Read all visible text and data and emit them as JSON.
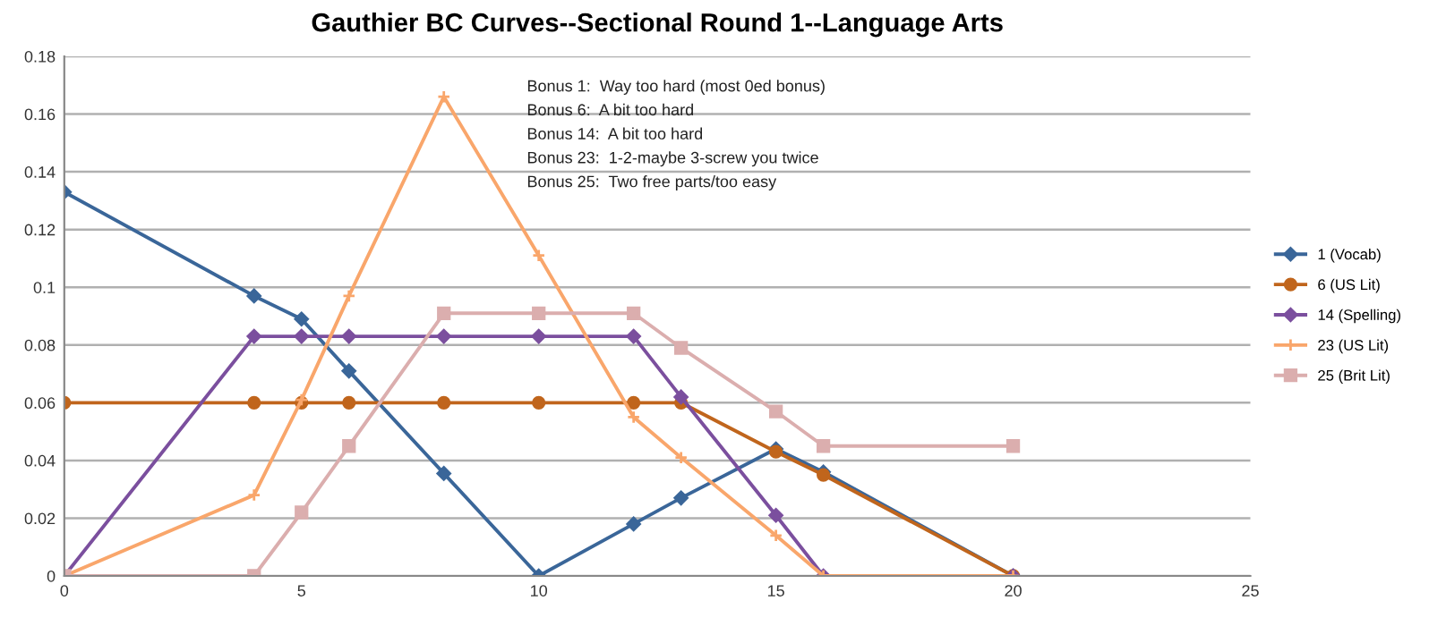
{
  "chart_data": {
    "type": "line",
    "title": "Gauthier BC Curves--Sectional Round 1--Language Arts",
    "x": [
      0,
      4,
      5,
      6,
      8,
      10,
      12,
      13,
      15,
      16,
      20
    ],
    "series": [
      {
        "name": "1 (Vocab)",
        "color": "#3a6699",
        "marker": "diamond",
        "values": [
          0.133,
          0.097,
          0.089,
          0.071,
          0.0355,
          0,
          0.018,
          0.027,
          0.044,
          0.036,
          0
        ]
      },
      {
        "name": "6 (US Lit)",
        "color": "#c0651c",
        "marker": "circle",
        "values": [
          0.06,
          0.06,
          0.06,
          0.06,
          0.06,
          0.06,
          0.06,
          0.06,
          0.043,
          0.035,
          0
        ]
      },
      {
        "name": "14 (Spelling)",
        "color": "#7b4f9e",
        "marker": "diamond",
        "values": [
          0,
          0.083,
          0.083,
          0.083,
          0.083,
          0.083,
          0.083,
          0.062,
          0.021,
          0,
          0
        ]
      },
      {
        "name": "23 (US Lit)",
        "color": "#f9a66b",
        "marker": "cross",
        "values": [
          0,
          0.028,
          0.061,
          0.097,
          0.166,
          0.111,
          0.055,
          0.041,
          0.014,
          0,
          0
        ]
      },
      {
        "name": "25 (Brit Lit)",
        "color": "#dbaeae",
        "marker": "square",
        "values": [
          0,
          0,
          0.022,
          0.045,
          0.091,
          0.091,
          0.091,
          0.079,
          0.057,
          0.045,
          0.045
        ]
      }
    ],
    "annotations": [
      "Bonus 1:  Way too hard (most 0ed bonus)",
      "Bonus 6:  A bit too hard",
      "Bonus 14:  A bit too hard",
      "Bonus 23:  1-2-maybe 3-screw you twice",
      "Bonus 25:  Two free parts/too easy"
    ],
    "xlim": [
      0,
      25
    ],
    "xticks": [
      0,
      5,
      10,
      15,
      20,
      25
    ],
    "ylim": [
      0,
      0.18
    ],
    "yticks": [
      0,
      0.02,
      0.04,
      0.06,
      0.08,
      0.1,
      0.12,
      0.14,
      0.16,
      0.18
    ],
    "grid": "y",
    "legend": "right",
    "line_style": "solid"
  }
}
